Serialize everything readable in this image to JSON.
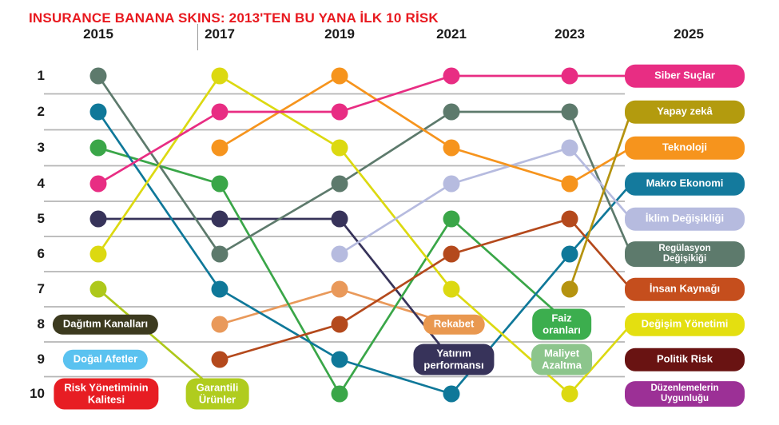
{
  "title": "INSURANCE BANANA SKINS: 2013'TEN BU YANA İLK 10 RİSK",
  "title_color": "#e8191f",
  "grid_color": "#b5b5b5",
  "chart_data": {
    "type": "line",
    "subtype": "bump-rank-chart",
    "x": [
      "2015",
      "2017",
      "2019",
      "2021",
      "2023",
      "2025"
    ],
    "y_ranks": [
      1,
      2,
      3,
      4,
      5,
      6,
      7,
      8,
      9,
      10
    ],
    "series": [
      {
        "name": "Garantili Ürünler",
        "color": "#aec81a",
        "points": [
          [
            "2015",
            7
          ],
          [
            "2017",
            10
          ]
        ]
      },
      {
        "name": "Rekabet",
        "color": "#e9995a",
        "points": [
          [
            "2017",
            8
          ],
          [
            "2019",
            7
          ],
          [
            "2021",
            8
          ]
        ]
      },
      {
        "name": "Yatırım performansı",
        "color": "#37335a",
        "points": [
          [
            "2015",
            5
          ],
          [
            "2017",
            5
          ],
          [
            "2019",
            5
          ],
          [
            "2021",
            9
          ]
        ]
      },
      {
        "name": "Faiz oranları",
        "color": "#3aa648",
        "points": [
          [
            "2015",
            3
          ],
          [
            "2017",
            4
          ],
          [
            "2019",
            10
          ],
          [
            "2021",
            5
          ],
          [
            "2023",
            8
          ]
        ]
      },
      {
        "name": "Makro Ekonomi",
        "color": "#0f7899",
        "points": [
          [
            "2015",
            2
          ],
          [
            "2017",
            7
          ],
          [
            "2019",
            9
          ],
          [
            "2021",
            10
          ],
          [
            "2023",
            6
          ],
          [
            "2025",
            4
          ]
        ]
      },
      {
        "name": "Regülasyon Değişikiği",
        "color": "#5d7a6c",
        "points": [
          [
            "2015",
            1
          ],
          [
            "2017",
            6
          ],
          [
            "2019",
            4
          ],
          [
            "2021",
            2
          ],
          [
            "2023",
            2
          ],
          [
            "2025",
            6
          ]
        ]
      },
      {
        "name": "Değişim Yönetimi",
        "color": "#dcd911",
        "points": [
          [
            "2015",
            6
          ],
          [
            "2017",
            1
          ],
          [
            "2019",
            3
          ],
          [
            "2021",
            7
          ],
          [
            "2023",
            10
          ],
          [
            "2025",
            8
          ]
        ]
      },
      {
        "name": "İnsan Kaynağı",
        "color": "#b4491c",
        "points": [
          [
            "2017",
            9
          ],
          [
            "2019",
            8
          ],
          [
            "2021",
            6
          ],
          [
            "2023",
            5
          ],
          [
            "2025",
            7
          ]
        ]
      },
      {
        "name": "İklim Değişikliği",
        "color": "#b6bbdf",
        "points": [
          [
            "2019",
            6
          ],
          [
            "2021",
            4
          ],
          [
            "2023",
            3
          ],
          [
            "2025",
            5
          ]
        ]
      },
      {
        "name": "Teknoloji",
        "color": "#f6941d",
        "points": [
          [
            "2017",
            3
          ],
          [
            "2019",
            1
          ],
          [
            "2021",
            3
          ],
          [
            "2023",
            4
          ],
          [
            "2025",
            3
          ]
        ]
      },
      {
        "name": "Yapay zekâ",
        "color": "#b59310",
        "points": [
          [
            "2023",
            7
          ],
          [
            "2025",
            2
          ]
        ]
      },
      {
        "name": "Siber Suçlar",
        "color": "#e82d83",
        "points": [
          [
            "2015",
            4
          ],
          [
            "2017",
            2
          ],
          [
            "2019",
            2
          ],
          [
            "2021",
            1
          ],
          [
            "2023",
            1
          ],
          [
            "2025",
            1
          ]
        ]
      }
    ],
    "inline_labels": [
      {
        "text": "Dağıtım Kanalları",
        "bg": "#3c3a1f",
        "year": "2015",
        "rank": 8,
        "dx": 9
      },
      {
        "text": "Doğal Afetler",
        "bg": "#5ac2f0",
        "year": "2015",
        "rank": 9,
        "dx": 9
      },
      {
        "text": "Risk Yönetiminin\nKalitesi",
        "bg": "#e71d23",
        "year": "2015",
        "rank": 10,
        "dx": 10
      },
      {
        "text": "Garantili\nÜrünler",
        "bg": "#b0cc1e",
        "year": "2017",
        "rank": 10,
        "dx": -3
      },
      {
        "text": "Rekabet",
        "bg": "#e99850",
        "year": "2021",
        "rank": 8,
        "dx": 3
      },
      {
        "text": "Yatırım\nperformansı",
        "bg": "#37335a",
        "year": "2021",
        "rank": 9,
        "dx": 3
      },
      {
        "text": "Faiz\noranları",
        "bg": "#3cae4e",
        "year": "2023",
        "rank": 8,
        "dx": -10
      },
      {
        "text": "Maliyet\nAzaltma",
        "bg": "#8cc58c",
        "year": "2023",
        "rank": 9,
        "dx": -10
      }
    ],
    "final_labels_2025": [
      {
        "text": "Siber Suçlar",
        "bg": "#e82d83",
        "rank": 1
      },
      {
        "text": "Yapay zekâ",
        "bg": "#b39b0e",
        "rank": 2
      },
      {
        "text": "Teknoloji",
        "bg": "#f6941d",
        "rank": 3
      },
      {
        "text": "Makro Ekonomi",
        "bg": "#147a9d",
        "rank": 4
      },
      {
        "text": "İklim Değişikliği",
        "bg": "#b6bbdf",
        "rank": 5
      },
      {
        "text": "Regülasyon\nDeğişikiği",
        "bg": "#5d7a6c",
        "rank": 6
      },
      {
        "text": "İnsan Kaynağı",
        "bg": "#c54e1d",
        "rank": 7
      },
      {
        "text": "Değişim Yönetimi",
        "bg": "#e4df10",
        "rank": 8
      },
      {
        "text": "Politik Risk",
        "bg": "#691312",
        "rank": 9
      },
      {
        "text": "Düzenlemelerin\nUygunluğu",
        "bg": "#9c3096",
        "rank": 10
      }
    ]
  }
}
